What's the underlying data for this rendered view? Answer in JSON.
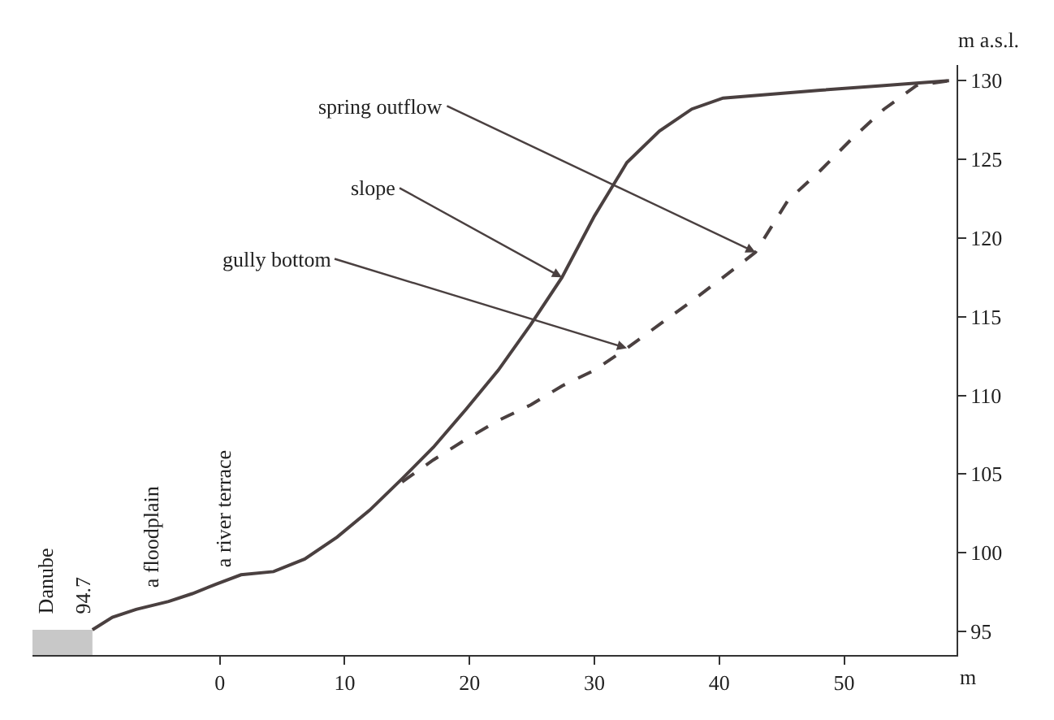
{
  "chart_data": {
    "type": "line",
    "xlabel": "m",
    "ylabel": "m a.s.l.",
    "xlim": [
      -15,
      59
    ],
    "ylim": [
      93.5,
      131
    ],
    "xticks": [
      0,
      10,
      20,
      30,
      40,
      50
    ],
    "yticks": [
      95,
      100,
      105,
      110,
      115,
      120,
      125,
      130
    ],
    "grid": false,
    "marker": "none",
    "series": [
      {
        "type": "area",
        "color": "#c8c8c8",
        "x": [
          -15,
          -10.2
        ],
        "values": [
          95.1,
          95.1
        ]
      },
      {
        "color": "#4a4040",
        "line_style": "solid",
        "x": [
          -10.2,
          -8.6,
          -6.7,
          -4.1,
          -2.2,
          -0.3,
          1.7,
          4.3,
          6.8,
          9.4,
          12.0,
          14.6,
          17.1,
          19.7,
          22.3,
          24.9,
          27.4,
          30.0,
          32.6,
          35.2,
          37.8,
          40.3,
          48.1,
          53.2,
          58.4
        ],
        "values": [
          95.1,
          95.9,
          96.4,
          96.9,
          97.4,
          98.0,
          98.6,
          98.8,
          99.6,
          101.0,
          102.7,
          104.7,
          106.7,
          109.1,
          111.6,
          114.5,
          117.5,
          121.4,
          124.8,
          126.8,
          128.2,
          128.9,
          129.4,
          129.7,
          130.0
        ]
      },
      {
        "color": "#4a4040",
        "line_style": "dashed",
        "x": [
          14.6,
          17.1,
          19.7,
          22.3,
          24.9,
          27.4,
          30.0,
          32.6,
          35.2,
          37.8,
          40.3,
          42.9,
          45.5,
          48.1,
          50.6,
          53.2,
          55.8,
          58.4
        ],
        "values": [
          104.5,
          105.9,
          107.2,
          108.4,
          109.4,
          110.6,
          111.6,
          113.0,
          114.5,
          116.0,
          117.5,
          119.1,
          122.4,
          124.3,
          126.3,
          128.2,
          129.7,
          130.0
        ]
      }
    ],
    "annotations": [
      {
        "text": "spring outflow",
        "x": 42.9,
        "y": 119.1
      },
      {
        "text": "slope",
        "x": 27.4,
        "y": 117.5
      },
      {
        "text": "gully bottom",
        "x": 32.6,
        "y": 113.0
      },
      {
        "text": "Danube",
        "x": -14,
        "y": 95.1
      },
      {
        "text": "94.7",
        "x": -11,
        "y": 95.1
      },
      {
        "text": "a floodplain",
        "x": -5.5,
        "y": 96.7
      },
      {
        "text": "a river terrace",
        "x": 0.3,
        "y": 98.0
      }
    ]
  }
}
